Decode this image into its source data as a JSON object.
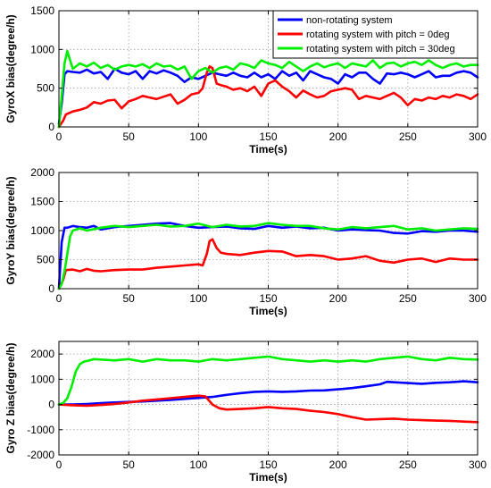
{
  "chart_data": [
    {
      "type": "line",
      "title": "",
      "xlabel": "Time(s)",
      "ylabel": "GyroX bias(degree/h)",
      "xlim": [
        0,
        300
      ],
      "ylim": [
        0,
        1500
      ],
      "xticks": [
        "0",
        "50",
        "100",
        "150",
        "200",
        "250",
        "300"
      ],
      "yticks": [
        "0",
        "500",
        "1000",
        "1500"
      ],
      "grid": true,
      "legend_placement": "top-right",
      "series": [
        {
          "name": "non-rotating system",
          "color": "#0000ff",
          "x": [
            0,
            2,
            4,
            6,
            10,
            15,
            20,
            25,
            30,
            35,
            40,
            45,
            50,
            55,
            60,
            65,
            70,
            75,
            80,
            85,
            90,
            95,
            100,
            105,
            110,
            115,
            120,
            125,
            130,
            135,
            140,
            145,
            150,
            155,
            160,
            165,
            170,
            175,
            180,
            185,
            190,
            195,
            200,
            205,
            210,
            215,
            220,
            225,
            230,
            235,
            240,
            245,
            250,
            255,
            260,
            265,
            270,
            275,
            280,
            285,
            290,
            295,
            300
          ],
          "values": [
            40,
            300,
            680,
            720,
            710,
            700,
            740,
            690,
            710,
            620,
            750,
            700,
            680,
            720,
            620,
            720,
            690,
            730,
            700,
            660,
            580,
            640,
            620,
            660,
            700,
            680,
            660,
            700,
            660,
            640,
            700,
            640,
            680,
            620,
            720,
            660,
            700,
            600,
            720,
            680,
            640,
            620,
            560,
            680,
            640,
            700,
            700,
            620,
            560,
            690,
            680,
            700,
            680,
            640,
            680,
            720,
            640,
            660,
            660,
            700,
            720,
            700,
            640
          ]
        },
        {
          "name": "rotating system with pitch = 0deg",
          "color": "#ff0000",
          "x": [
            0,
            3,
            5,
            10,
            15,
            20,
            25,
            30,
            35,
            40,
            45,
            50,
            55,
            60,
            65,
            70,
            75,
            80,
            85,
            90,
            95,
            100,
            103,
            106,
            108,
            110,
            113,
            116,
            120,
            125,
            130,
            135,
            140,
            145,
            150,
            155,
            160,
            165,
            170,
            175,
            180,
            185,
            190,
            195,
            200,
            205,
            210,
            215,
            220,
            225,
            230,
            235,
            240,
            245,
            250,
            255,
            260,
            265,
            270,
            275,
            280,
            285,
            290,
            295,
            300
          ],
          "values": [
            0,
            80,
            160,
            200,
            220,
            250,
            320,
            300,
            340,
            350,
            240,
            330,
            360,
            400,
            380,
            360,
            390,
            420,
            300,
            350,
            420,
            440,
            500,
            700,
            780,
            760,
            560,
            540,
            520,
            480,
            500,
            460,
            520,
            400,
            560,
            600,
            520,
            460,
            380,
            470,
            420,
            380,
            400,
            460,
            480,
            500,
            480,
            360,
            400,
            380,
            360,
            400,
            440,
            380,
            280,
            360,
            340,
            380,
            360,
            400,
            380,
            420,
            400,
            360,
            420
          ]
        },
        {
          "name": "rotating system with pitch = 30deg",
          "color": "#00ee00",
          "x": [
            0,
            2,
            4,
            6,
            8,
            10,
            15,
            20,
            25,
            30,
            35,
            40,
            45,
            50,
            55,
            60,
            65,
            70,
            75,
            80,
            85,
            90,
            95,
            100,
            105,
            110,
            115,
            120,
            125,
            130,
            135,
            140,
            145,
            150,
            155,
            160,
            165,
            170,
            175,
            180,
            185,
            190,
            195,
            200,
            205,
            210,
            215,
            220,
            225,
            230,
            235,
            240,
            245,
            250,
            255,
            260,
            265,
            270,
            275,
            280,
            285,
            290,
            295,
            300
          ],
          "values": [
            0,
            400,
            820,
            980,
            860,
            750,
            820,
            780,
            830,
            760,
            800,
            740,
            780,
            800,
            780,
            810,
            760,
            820,
            780,
            790,
            740,
            780,
            620,
            720,
            760,
            700,
            760,
            780,
            740,
            820,
            800,
            760,
            860,
            820,
            800,
            760,
            840,
            780,
            720,
            780,
            820,
            770,
            800,
            820,
            760,
            820,
            800,
            780,
            860,
            760,
            820,
            830,
            780,
            820,
            840,
            800,
            860,
            800,
            760,
            800,
            820,
            780,
            800,
            800
          ]
        }
      ]
    },
    {
      "type": "line",
      "title": "",
      "xlabel": "Time(s)",
      "ylabel": "GyroY bias(degree/h)",
      "xlim": [
        0,
        300
      ],
      "ylim": [
        0,
        2000
      ],
      "xticks": [
        "0",
        "50",
        "100",
        "150",
        "200",
        "250",
        "300"
      ],
      "yticks": [
        "0",
        "500",
        "1000",
        "1500",
        "2000"
      ],
      "grid": true,
      "series": [
        {
          "name": "non-rotating system",
          "color": "#0000ff",
          "x": [
            0,
            2,
            4,
            6,
            10,
            15,
            20,
            25,
            30,
            40,
            50,
            60,
            70,
            80,
            90,
            100,
            110,
            120,
            130,
            140,
            150,
            160,
            170,
            180,
            190,
            200,
            210,
            220,
            230,
            240,
            250,
            260,
            270,
            280,
            290,
            300
          ],
          "values": [
            0,
            800,
            1050,
            1050,
            1080,
            1060,
            1050,
            1080,
            1020,
            1060,
            1080,
            1100,
            1120,
            1130,
            1080,
            1050,
            1060,
            1070,
            1040,
            1030,
            1080,
            1050,
            1070,
            1040,
            1050,
            1000,
            1020,
            1010,
            1000,
            960,
            950,
            990,
            980,
            1000,
            1000,
            980
          ]
        },
        {
          "name": "rotating system with pitch = 0deg",
          "color": "#ff0000",
          "x": [
            0,
            3,
            5,
            10,
            15,
            20,
            25,
            30,
            40,
            50,
            60,
            70,
            80,
            90,
            100,
            103,
            106,
            108,
            110,
            113,
            116,
            120,
            130,
            140,
            150,
            160,
            170,
            180,
            190,
            200,
            210,
            220,
            230,
            240,
            250,
            260,
            270,
            280,
            290,
            300
          ],
          "values": [
            0,
            150,
            320,
            330,
            300,
            340,
            310,
            300,
            320,
            330,
            330,
            360,
            380,
            400,
            420,
            400,
            600,
            820,
            850,
            700,
            620,
            600,
            580,
            620,
            650,
            640,
            560,
            580,
            560,
            500,
            520,
            560,
            480,
            450,
            500,
            520,
            460,
            520,
            500,
            500
          ]
        },
        {
          "name": "rotating system with pitch = 30deg",
          "color": "#00ee00",
          "x": [
            0,
            2,
            4,
            6,
            8,
            10,
            15,
            20,
            30,
            40,
            50,
            60,
            70,
            80,
            90,
            100,
            110,
            120,
            130,
            140,
            150,
            160,
            170,
            180,
            190,
            200,
            210,
            220,
            230,
            240,
            250,
            260,
            270,
            280,
            290,
            300
          ],
          "values": [
            0,
            80,
            300,
            600,
            900,
            1000,
            1040,
            1000,
            1050,
            1080,
            1060,
            1080,
            1100,
            1070,
            1080,
            1120,
            1060,
            1100,
            1070,
            1080,
            1130,
            1100,
            1080,
            1080,
            1040,
            1020,
            1060,
            1040,
            1060,
            1080,
            1020,
            1040,
            1000,
            1020,
            1040,
            1030
          ]
        }
      ]
    },
    {
      "type": "line",
      "title": "",
      "xlabel": "Time(s)",
      "ylabel": "Gyro Z bias(degree/h)",
      "xlim": [
        0,
        300
      ],
      "ylim": [
        -2000,
        2500
      ],
      "xticks": [
        "0",
        "50",
        "100",
        "150",
        "200",
        "250",
        "300"
      ],
      "yticks": [
        "-2000",
        "-1000",
        "0",
        "1000",
        "2000"
      ],
      "grid": true,
      "series": [
        {
          "name": "non-rotating system",
          "color": "#0000ff",
          "x": [
            0,
            10,
            20,
            30,
            40,
            50,
            60,
            70,
            80,
            90,
            100,
            110,
            120,
            130,
            140,
            150,
            160,
            170,
            180,
            190,
            200,
            210,
            220,
            230,
            235,
            240,
            250,
            260,
            270,
            280,
            290,
            300
          ],
          "values": [
            0,
            0,
            20,
            50,
            80,
            100,
            120,
            150,
            180,
            220,
            260,
            300,
            380,
            450,
            500,
            520,
            500,
            520,
            550,
            560,
            600,
            650,
            720,
            800,
            900,
            880,
            850,
            820,
            860,
            880,
            920,
            880
          ]
        },
        {
          "name": "rotating system with pitch = 0deg",
          "color": "#ff0000",
          "x": [
            0,
            10,
            20,
            30,
            40,
            50,
            60,
            70,
            80,
            90,
            100,
            105,
            110,
            115,
            120,
            130,
            140,
            150,
            160,
            170,
            180,
            190,
            200,
            210,
            220,
            230,
            240,
            250,
            260,
            270,
            280,
            290,
            300
          ],
          "values": [
            0,
            -30,
            -50,
            -20,
            20,
            80,
            150,
            200,
            250,
            300,
            350,
            320,
            0,
            -150,
            -200,
            -180,
            -150,
            -100,
            -150,
            -180,
            -250,
            -300,
            -380,
            -500,
            -600,
            -580,
            -560,
            -600,
            -620,
            -640,
            -650,
            -680,
            -700
          ]
        },
        {
          "name": "rotating system with pitch = 30deg",
          "color": "#00ee00",
          "x": [
            0,
            3,
            6,
            9,
            12,
            15,
            18,
            22,
            25,
            30,
            40,
            50,
            60,
            70,
            80,
            90,
            100,
            110,
            120,
            130,
            140,
            150,
            160,
            170,
            180,
            190,
            200,
            210,
            220,
            230,
            240,
            250,
            260,
            270,
            280,
            290,
            300
          ],
          "values": [
            0,
            60,
            250,
            700,
            1300,
            1600,
            1700,
            1750,
            1800,
            1780,
            1750,
            1800,
            1700,
            1800,
            1750,
            1750,
            1700,
            1800,
            1750,
            1800,
            1850,
            1900,
            1800,
            1750,
            1700,
            1750,
            1700,
            1750,
            1700,
            1800,
            1850,
            1900,
            1800,
            1750,
            1850,
            1800,
            1780
          ]
        }
      ]
    }
  ]
}
